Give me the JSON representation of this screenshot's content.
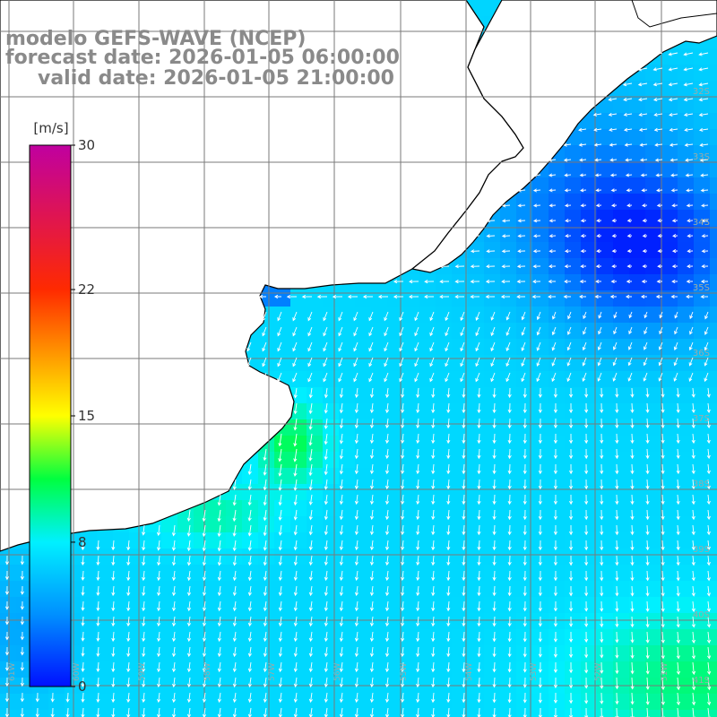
{
  "header": {
    "line1": "modelo GEFS-WAVE (NCEP)",
    "line2": "forecast date: 2026-01-05 06:00:00",
    "line3": "valid date: 2026-01-05 21:00:00"
  },
  "colorbar": {
    "unit": "[m/s]",
    "min": 0,
    "max": 30,
    "ticks": [
      {
        "value": 30,
        "label": "30"
      },
      {
        "value": 22,
        "label": "22"
      },
      {
        "value": 15,
        "label": "15"
      },
      {
        "value": 8,
        "label": "8"
      },
      {
        "value": 0,
        "label": "0"
      }
    ],
    "stops": [
      {
        "value": 0,
        "color": "#0010ff"
      },
      {
        "value": 4,
        "color": "#0090ff"
      },
      {
        "value": 8,
        "color": "#00f0ff"
      },
      {
        "value": 11.5,
        "color": "#00ff40"
      },
      {
        "value": 15,
        "color": "#ffff00"
      },
      {
        "value": 22,
        "color": "#ff2a00"
      },
      {
        "value": 30,
        "color": "#c000a0"
      }
    ]
  },
  "map": {
    "lon_range": [
      -62,
      -51
    ],
    "lat_range": [
      -41,
      -30
    ],
    "longitude_labels": [
      "61W",
      "60W",
      "59W",
      "58W",
      "57W",
      "56W",
      "55W",
      "54W",
      "53W",
      "52W",
      "51W"
    ],
    "latitude_labels": [
      "32S",
      "33S",
      "34S",
      "35S",
      "36S",
      "37S",
      "38S",
      "39S",
      "40S",
      "41S"
    ],
    "grid": true,
    "colors": {
      "land": "#ffffff",
      "coast": "#000000",
      "grid": "#7a7a7a",
      "arrow": "#ffffff"
    }
  }
}
